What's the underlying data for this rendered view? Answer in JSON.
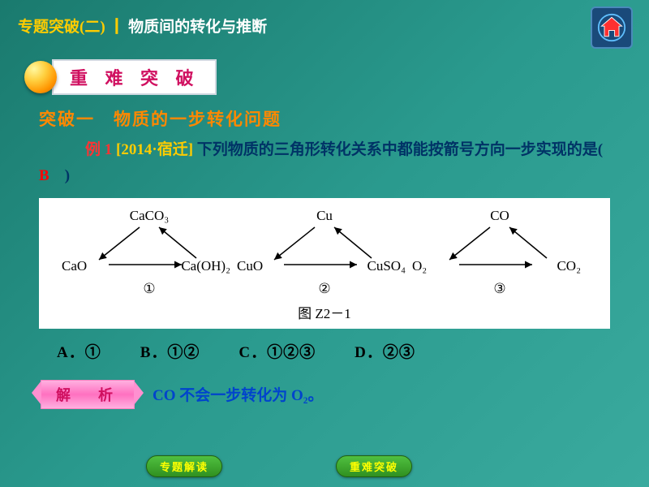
{
  "header": {
    "pre": "专题突破(二) ┃ ",
    "title": "物质间的转化与推断"
  },
  "badge": "重 难 突 破",
  "subtitle": "突破一　物质的一步转化问题",
  "example": {
    "label": "例 1 ",
    "source": "[2014·宿迁] ",
    "text1": "下列物质的三角形转化关系中都能按箭号方向一步实现的是(　",
    "answer": "B",
    "text2": "　)"
  },
  "diagram": {
    "triangles": [
      {
        "top": "CaCO₃",
        "bl": "CaO",
        "br": "Ca(OH)₂",
        "num": "①"
      },
      {
        "top": "Cu",
        "bl": "CuO",
        "br": "CuSO₄",
        "num": "②"
      },
      {
        "top": "CO",
        "bl": "O₂",
        "br": "CO₂",
        "num": "③"
      }
    ],
    "figlabel": "图 Z2－1"
  },
  "options": [
    {
      "k": "A．",
      "v": "①"
    },
    {
      "k": "B．",
      "v": "①②"
    },
    {
      "k": "C．",
      "v": "①②③"
    },
    {
      "k": "D．",
      "v": "②③"
    }
  ],
  "analysis": {
    "badge": "解　析",
    "text": "CO 不会一步转化为 O₂。"
  },
  "nav": [
    "专题解读",
    "重难突破"
  ],
  "colors": {
    "accent": "#ffcc00",
    "answer": "#ff0000"
  }
}
